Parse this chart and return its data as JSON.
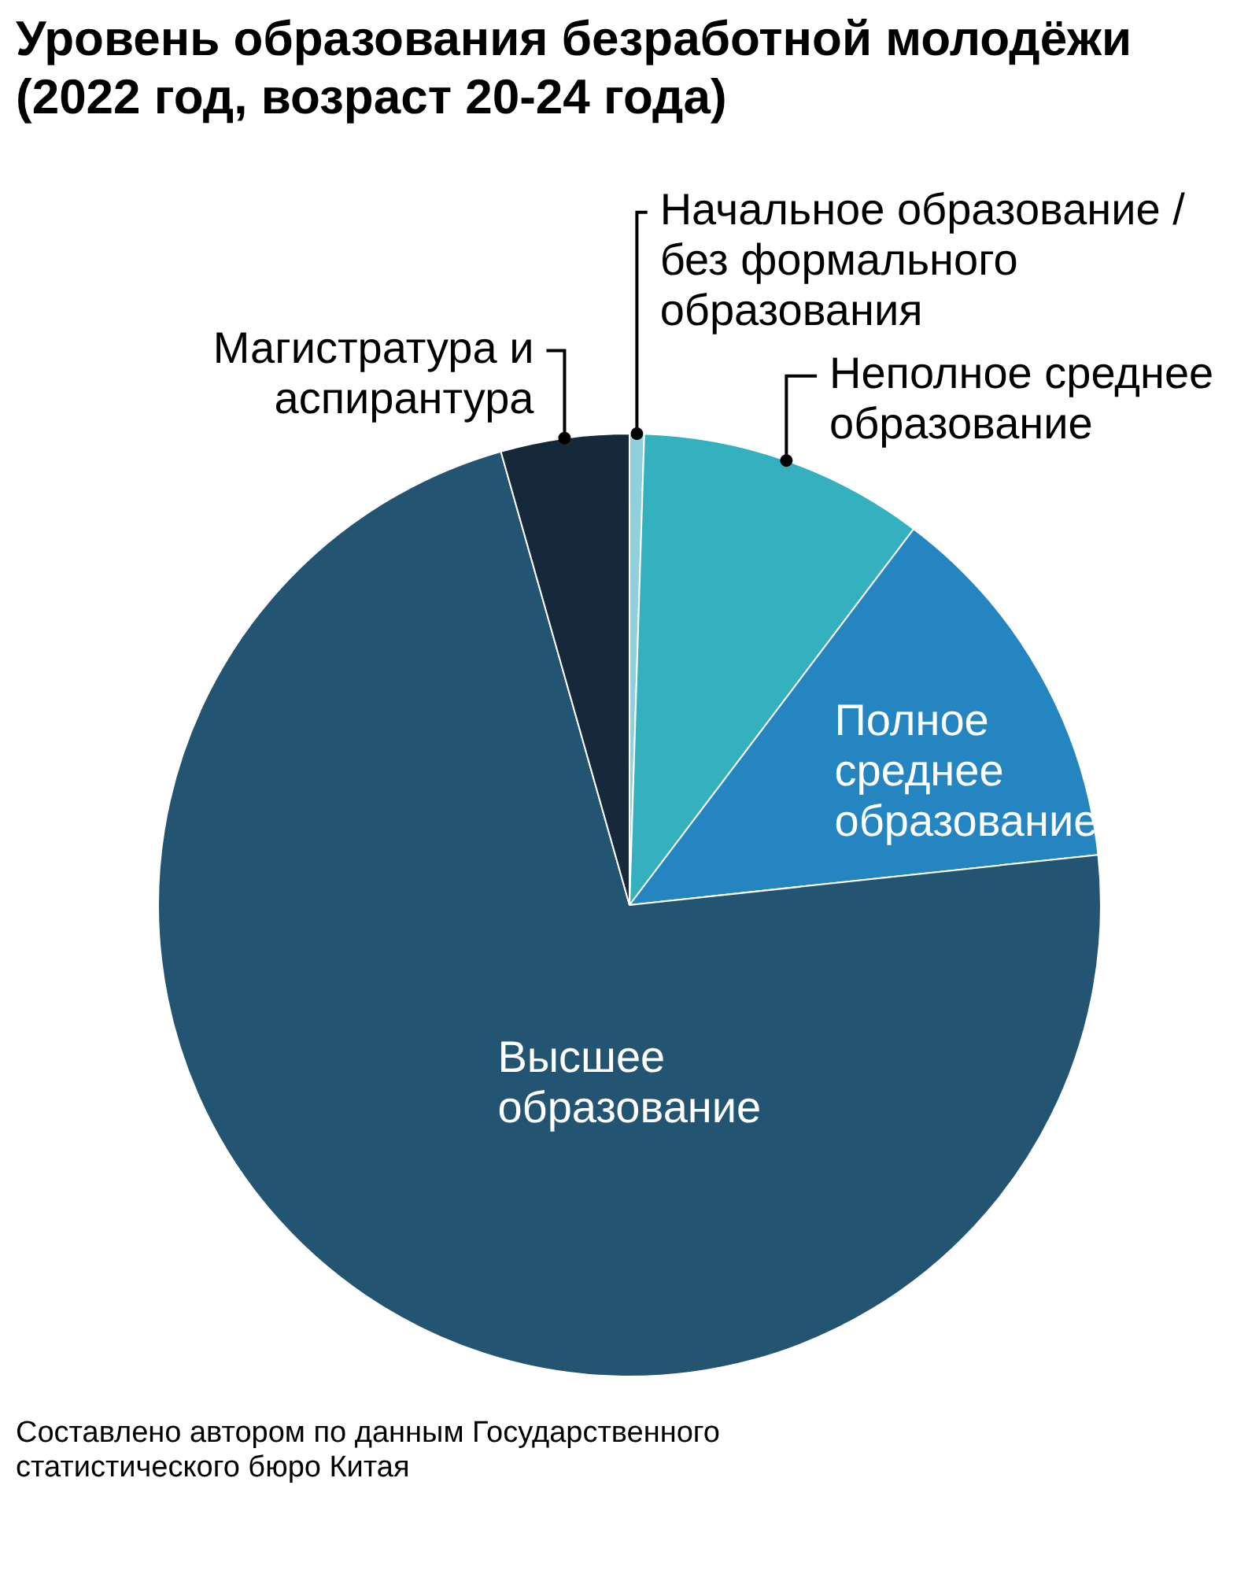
{
  "chart_data": {
    "type": "pie",
    "title": "Уровень образования безработной молодёжи (2022 год, возраст 20-24 года)",
    "categories": [
      "Начальное образование / без формального образования",
      "Неполное среднее образование",
      "Полное среднее образование",
      "Высшее образование",
      "Магистратура и аспирантура"
    ],
    "values": [
      0.5,
      9.8,
      13,
      72.3,
      4.4
    ],
    "colors": [
      "#8fd0dc",
      "#35b0be",
      "#2585c0",
      "#235573",
      "#16293a"
    ],
    "legend": false,
    "annotations": [
      "Составлено автором по данным Государственного статистического бюро Китая"
    ]
  }
}
